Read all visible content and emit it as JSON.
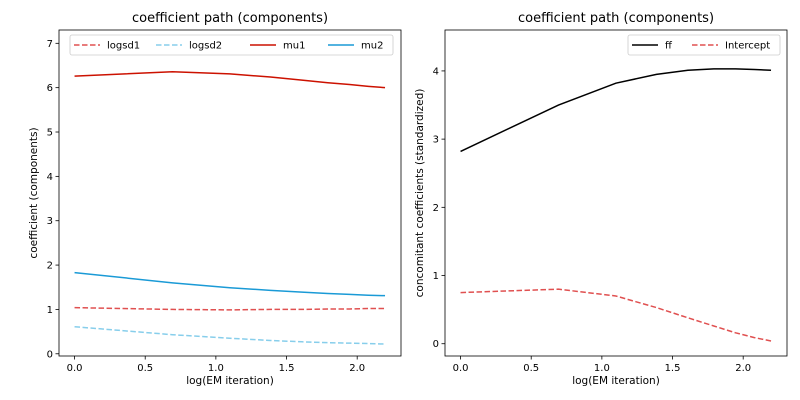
{
  "chart_data": [
    {
      "type": "line",
      "title": "coefficient path (components)",
      "xlabel": "log(EM iteration)",
      "ylabel": "coefficient (components)",
      "xlim": [
        -0.11,
        2.31
      ],
      "ylim": [
        -0.05,
        7.3
      ],
      "xticks": [
        0,
        0.5,
        1,
        1.5,
        2
      ],
      "yticks": [
        0,
        1,
        2,
        3,
        4,
        5,
        6,
        7
      ],
      "xtick_labels": [
        "0.0",
        "0.5",
        "1.0",
        "1.5",
        "2.0"
      ],
      "ytick_labels": [
        "0",
        "1",
        "2",
        "3",
        "4",
        "5",
        "6",
        "7"
      ],
      "legend": "top, 4 columns",
      "x": [
        0,
        0.693,
        1.099,
        1.386,
        1.609,
        1.792,
        1.946,
        2.079,
        2.197
      ],
      "series": [
        {
          "name": "logsd1",
          "color": "#e05050",
          "dash": "dashed",
          "values": [
            1.04,
            1.0,
            0.99,
            1.0,
            1.0,
            1.01,
            1.01,
            1.02,
            1.02
          ]
        },
        {
          "name": "logsd2",
          "color": "#87ceeb",
          "dash": "dashed",
          "values": [
            0.61,
            0.43,
            0.35,
            0.3,
            0.27,
            0.25,
            0.24,
            0.23,
            0.22
          ]
        },
        {
          "name": "mu1",
          "color": "#cc1100",
          "dash": "solid",
          "values": [
            6.26,
            6.36,
            6.31,
            6.24,
            6.17,
            6.11,
            6.07,
            6.03,
            6.0
          ]
        },
        {
          "name": "mu2",
          "color": "#1a9ad6",
          "dash": "solid",
          "values": [
            1.83,
            1.6,
            1.49,
            1.43,
            1.39,
            1.36,
            1.34,
            1.32,
            1.31
          ]
        }
      ]
    },
    {
      "type": "line",
      "title": "coefficient path (components)",
      "xlabel": "log(EM iteration)",
      "ylabel": "concomitant coefficients (standardized)",
      "xlim": [
        -0.11,
        2.31
      ],
      "ylim": [
        -0.18,
        4.6
      ],
      "xticks": [
        0,
        0.5,
        1,
        1.5,
        2
      ],
      "yticks": [
        0,
        1,
        2,
        3,
        4
      ],
      "xtick_labels": [
        "0.0",
        "0.5",
        "1.0",
        "1.5",
        "2.0"
      ],
      "ytick_labels": [
        "0",
        "1",
        "2",
        "3",
        "4"
      ],
      "legend": "top-right",
      "x": [
        0,
        0.693,
        1.099,
        1.386,
        1.609,
        1.792,
        1.946,
        2.079,
        2.197
      ],
      "series": [
        {
          "name": "ff",
          "color": "#000000",
          "dash": "solid",
          "values": [
            2.82,
            3.5,
            3.82,
            3.95,
            4.01,
            4.03,
            4.03,
            4.02,
            4.01
          ]
        },
        {
          "name": "Intercept",
          "color": "#e05050",
          "dash": "dashed",
          "values": [
            0.75,
            0.8,
            0.7,
            0.53,
            0.38,
            0.26,
            0.16,
            0.09,
            0.04
          ]
        }
      ]
    }
  ]
}
